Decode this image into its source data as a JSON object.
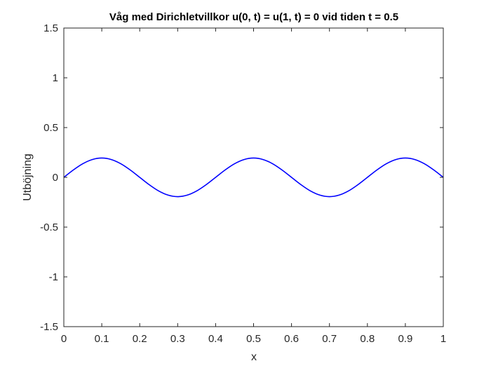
{
  "chart_data": {
    "type": "line",
    "title": "Våg med Dirichletvillkor u(0, t) = u(1, t) = 0 vid tiden t = 0.5",
    "xlabel": "x",
    "ylabel": "Utböjning",
    "xlim": [
      0,
      1
    ],
    "ylim": [
      -1.5,
      1.5
    ],
    "xticks": [
      0,
      0.1,
      0.2,
      0.3,
      0.4,
      0.5,
      0.6,
      0.7,
      0.8,
      0.9,
      1
    ],
    "xtick_labels": [
      "0",
      "0.1",
      "0.2",
      "0.3",
      "0.4",
      "0.5",
      "0.6",
      "0.7",
      "0.8",
      "0.9",
      "1"
    ],
    "yticks": [
      -1.5,
      -1,
      -0.5,
      0,
      0.5,
      1,
      1.5
    ],
    "ytick_labels": [
      "-1.5",
      "-1",
      "-0.5",
      "0",
      "0.5",
      "1",
      "1.5"
    ],
    "grid": false,
    "box": true,
    "series": [
      {
        "color": "#0000ff",
        "x": [
          0,
          0.025,
          0.05,
          0.075,
          0.1,
          0.125,
          0.15,
          0.175,
          0.2,
          0.225,
          0.25,
          0.275,
          0.3,
          0.325,
          0.35,
          0.375,
          0.4,
          0.425,
          0.45,
          0.475,
          0.5,
          0.525,
          0.55,
          0.575,
          0.6,
          0.625,
          0.65,
          0.675,
          0.7,
          0.725,
          0.75,
          0.775,
          0.8,
          0.825,
          0.85,
          0.875,
          0.9,
          0.925,
          0.95,
          0.975,
          1
        ],
        "y": [
          0,
          0.074,
          0.137,
          0.179,
          0.194,
          0.179,
          0.137,
          0.074,
          0,
          -0.074,
          -0.137,
          -0.179,
          -0.194,
          -0.179,
          -0.137,
          -0.074,
          0,
          0.074,
          0.137,
          0.179,
          0.194,
          0.179,
          0.137,
          0.074,
          0,
          -0.074,
          -0.137,
          -0.179,
          -0.194,
          -0.179,
          -0.137,
          -0.074,
          0,
          0.074,
          0.137,
          0.179,
          0.194,
          0.179,
          0.137,
          0.074,
          0
        ]
      }
    ]
  }
}
